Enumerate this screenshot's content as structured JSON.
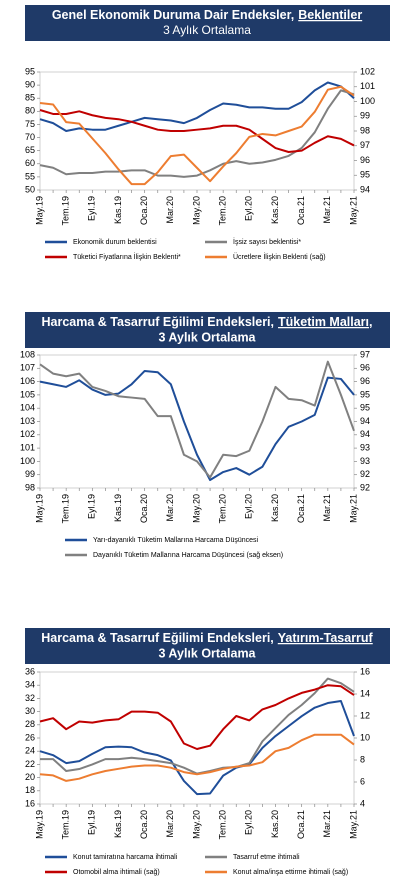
{
  "chart_data": [
    {
      "type": "line",
      "title": "Genel Ekonomik Duruma Dair Endeksler,",
      "title_link": "Beklentiler",
      "subtitle": "3 Aylık Ortalama",
      "categories": [
        "May.19",
        null,
        "Tem.19",
        null,
        "Eyl.19",
        null,
        "Kas.19",
        null,
        "Oca.20",
        null,
        "Mar.20",
        null,
        "May.20",
        null,
        "Tem.20",
        null,
        "Eyl.20",
        null,
        "Kas.20",
        null,
        "Oca.21",
        null,
        "Mar.21",
        null,
        "May.21"
      ],
      "ylim": [
        50,
        95
      ],
      "yticks": [
        50,
        55,
        60,
        65,
        70,
        75,
        80,
        85,
        90,
        95
      ],
      "y2lim": [
        94,
        102
      ],
      "y2ticks": [
        94,
        95,
        96,
        97,
        98,
        99,
        100,
        101,
        102
      ],
      "series": [
        {
          "name": "Ekonomik durum beklentisi",
          "color": "#1f4e99",
          "values": [
            77,
            75.5,
            72.5,
            73.5,
            73,
            73,
            74.5,
            76,
            77.5,
            77,
            76.5,
            75.5,
            77.5,
            80.5,
            83,
            82.5,
            81.5,
            81.5,
            81,
            81,
            83.5,
            88,
            91,
            89.5,
            85
          ]
        },
        {
          "name": "İşsiz sayısı beklentisi*",
          "color": "#808080",
          "values": [
            59.5,
            58.5,
            56,
            56.5,
            56.5,
            57,
            57,
            57.5,
            57.5,
            55.5,
            55.5,
            55,
            55.5,
            57.5,
            60,
            61,
            60,
            60.5,
            61.5,
            63,
            66,
            72,
            81,
            88,
            86.5
          ]
        },
        {
          "name": "Tüketici Fiyatlarına İlişkin Beklenti*",
          "color": "#c00000",
          "values": [
            80.5,
            79,
            79,
            80,
            78.5,
            77.5,
            77,
            76,
            74.5,
            73,
            72.5,
            72.5,
            73,
            73.5,
            74.5,
            74.5,
            73,
            69.5,
            66,
            64.5,
            65,
            68,
            70.5,
            69.5,
            67
          ]
        },
        {
          "name": "Ücretlere İlişkin Beklenti (sağ)",
          "color": "#ed7d31",
          "axis": "y2",
          "values": [
            99.9,
            99.8,
            98.6,
            98.5,
            97.5,
            96.5,
            95.4,
            94.4,
            94.4,
            95.2,
            96.3,
            96.4,
            95.5,
            94.6,
            95.6,
            96.5,
            97.6,
            97.8,
            97.7,
            98,
            98.3,
            99.3,
            100.8,
            101,
            100.4
          ]
        }
      ]
    },
    {
      "type": "line",
      "title": "Harcama & Tasarruf Eğilimi Endeksleri,",
      "title_link": "Tüketim Malları,",
      "subtitle": "3 Aylık Ortalama",
      "categories": [
        "May.19",
        null,
        "Tem.19",
        null,
        "Eyl.19",
        null,
        "Kas.19",
        null,
        "Oca.20",
        null,
        "Mar.20",
        null,
        "May.20",
        null,
        "Tem.20",
        null,
        "Eyl.20",
        null,
        "Kas.20",
        null,
        "Oca.21",
        null,
        "Mar.21",
        null,
        "May.21"
      ],
      "ylim": [
        98,
        108
      ],
      "yticks": [
        98,
        99,
        100,
        101,
        102,
        103,
        104,
        105,
        106,
        107,
        108
      ],
      "y2lim": [
        92,
        97
      ],
      "y2ticks": [
        92,
        {
          "value": 92.5,
          "label": "92"
        },
        93,
        {
          "value": 93.5,
          "label": "93"
        },
        94,
        {
          "value": 94.5,
          "label": "94"
        },
        95,
        {
          "value": 95.5,
          "label": "95"
        },
        96,
        {
          "value": 96.5,
          "label": "96"
        },
        97
      ],
      "series": [
        {
          "name": "Yarı-dayanıklı Tüketim Mallarına Harcama Düşüncesi",
          "color": "#1f4e99",
          "values": [
            106,
            105.8,
            105.6,
            106.1,
            105.4,
            105,
            105.1,
            105.8,
            106.8,
            106.7,
            105.8,
            103,
            100.5,
            98.6,
            99.2,
            99.5,
            99,
            99.6,
            101.3,
            102.6,
            103,
            103.5,
            106.3,
            106.2,
            105
          ]
        },
        {
          "name": "Dayanıklı Tüketim Mallarına Harcama Düşüncesi (sağ eksen)",
          "color": "#808080",
          "axis": "y2",
          "values": [
            96.65,
            96.3,
            96.2,
            96.3,
            95.8,
            95.65,
            95.45,
            95.4,
            95.35,
            94.7,
            94.7,
            93.25,
            93,
            92.4,
            93.25,
            93.2,
            93.4,
            94.5,
            95.8,
            95.35,
            95.3,
            95.1,
            96.75,
            95.5,
            94.15
          ]
        }
      ]
    },
    {
      "type": "line",
      "title": "Harcama & Tasarruf Eğilimi Endeksleri,",
      "title_link": "Yatırım-Tasarruf",
      "subtitle": "3 Aylık Ortalama",
      "categories": [
        "May.19",
        null,
        "Tem.19",
        null,
        "Eyl.19",
        null,
        "Kas.19",
        null,
        "Oca.20",
        null,
        "Mar.20",
        null,
        "May.20",
        null,
        "Tem.20",
        null,
        "Eyl.20",
        null,
        "Kas.20",
        null,
        "Oca.21",
        null,
        "Mar.21",
        null,
        "May.21"
      ],
      "ylim": [
        16,
        36
      ],
      "yticks": [
        16,
        18,
        20,
        22,
        24,
        26,
        28,
        30,
        32,
        34,
        36
      ],
      "y2lim": [
        4,
        16
      ],
      "y2ticks": [
        4,
        6,
        8,
        10,
        12,
        14,
        16
      ],
      "series": [
        {
          "name": "Konut tamiratına harcama ihtimali",
          "color": "#1f4e99",
          "values": [
            24,
            23.4,
            22.2,
            22.5,
            23.6,
            24.6,
            24.7,
            24.6,
            23.8,
            23.4,
            22.6,
            19.5,
            17.5,
            17.6,
            20.3,
            21.5,
            22,
            24.5,
            26.3,
            27.8,
            29.3,
            30.6,
            31.3,
            31.6,
            26.3
          ]
        },
        {
          "name": "Tasarruf etme ihtimali",
          "color": "#808080",
          "values": [
            22.8,
            22.8,
            21,
            21.3,
            22,
            22.8,
            22.8,
            23,
            22.8,
            22.5,
            22.2,
            21.5,
            20.6,
            21,
            21.5,
            21.6,
            22.2,
            25.5,
            27.5,
            29.5,
            31,
            32.8,
            35,
            34.3,
            33
          ]
        },
        {
          "name": "Otomobil alma ihtimali (sağ)",
          "color": "#c00000",
          "axis": "y2",
          "values": [
            11.5,
            11.8,
            10.8,
            11.5,
            11.4,
            11.6,
            11.7,
            12.4,
            12.4,
            12.3,
            11.5,
            9.5,
            9,
            9.3,
            10.8,
            12,
            11.6,
            12.6,
            13,
            13.6,
            14.1,
            14.4,
            14.8,
            14.7,
            13.9
          ]
        },
        {
          "name": "Konut alma/inşa ettirme ihtimali (sağ)",
          "color": "#ed7d31",
          "axis": "y2",
          "values": [
            6.7,
            6.6,
            6.1,
            6.3,
            6.7,
            7,
            7.2,
            7.4,
            7.5,
            7.5,
            7.3,
            6.9,
            6.7,
            6.9,
            7.2,
            7.4,
            7.5,
            7.8,
            8.8,
            9.1,
            9.8,
            10.3,
            10.3,
            10.3,
            9.4
          ]
        }
      ]
    }
  ]
}
